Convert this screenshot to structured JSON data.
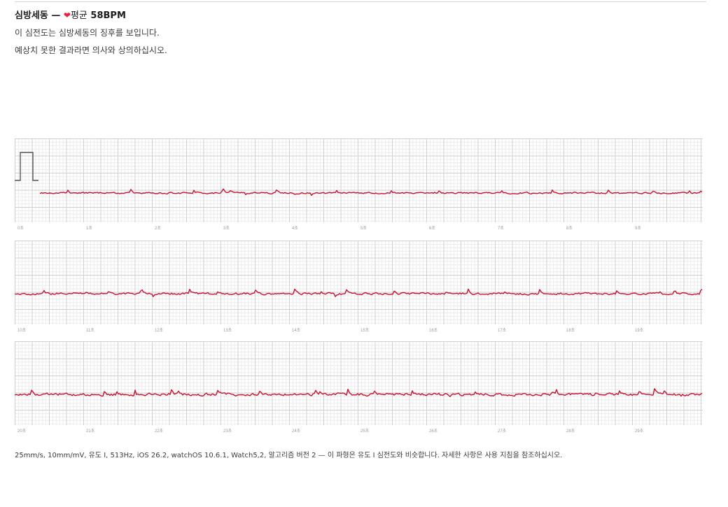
{
  "header": {
    "title": "심방세동 —",
    "heart_icon": "heart-icon",
    "avg_label": "평균",
    "bpm": "58BPM",
    "line1": "이 심전도는 심방세동의 징후를 보입니다.",
    "line2": "예상치 못한 결과라면 의사와 상의하십시오."
  },
  "ecg": {
    "trace_color": "#c8102e",
    "grid_minor_color": "#ececec",
    "grid_major_color": "#cfcfcf",
    "strips": [
      {
        "tick_labels": [
          "0초",
          "1초",
          "2초",
          "3초",
          "4초",
          "5초",
          "6초",
          "7초",
          "8초",
          "9초"
        ],
        "seed": 11,
        "amplitude": 0.6,
        "has_calibration": true
      },
      {
        "tick_labels": [
          "10초",
          "11초",
          "12초",
          "13초",
          "14초",
          "15초",
          "16초",
          "17초",
          "18초",
          "19초"
        ],
        "seed": 37,
        "amplitude": 0.75,
        "has_calibration": false
      },
      {
        "tick_labels": [
          "20초",
          "21초",
          "22초",
          "23초",
          "24초",
          "25초",
          "26초",
          "27초",
          "28초",
          "29초"
        ],
        "seed": 73,
        "amplitude": 1.0,
        "has_calibration": false
      }
    ]
  },
  "footer": {
    "text": "25mm/s, 10mm/mV, 유도 I, 513Hz, iOS 26.2, watchOS 10.6.1, Watch5,2, 알고리즘 버전 2 — 이 파형은 유도 I 심전도와 비슷합니다. 자세한 사항은 사용 지침을 참조하십시오."
  }
}
